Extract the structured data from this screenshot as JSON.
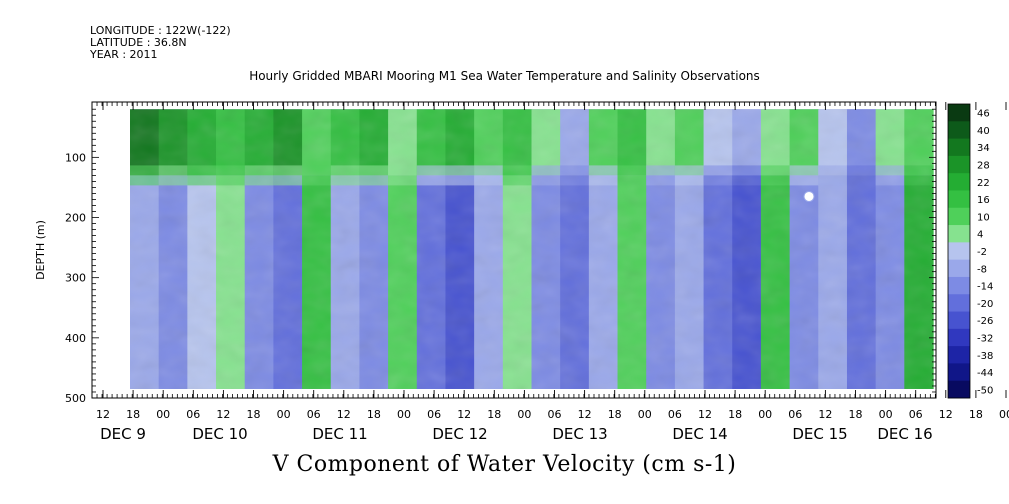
{
  "header": {
    "longitude": "LONGITUDE : 122W(-122)",
    "latitude": "LATITUDE : 36.8N",
    "year": "YEAR : 2011"
  },
  "chart_data": {
    "type": "heatmap",
    "title": "Hourly Gridded MBARI Mooring M1 Sea Water Temperature and Salinity Observations",
    "xlabel": "V Component of Water Velocity (cm s-1)",
    "ylabel": "DEPTH (m)",
    "y_reversed": true,
    "ylim": [
      0,
      500
    ],
    "data_depth_range": [
      20,
      485
    ],
    "y_ticks": [
      100,
      200,
      300,
      400,
      500
    ],
    "x_time_range_hours": [
      "DEC 9 12",
      "DEC 16 09"
    ],
    "data_time_range": [
      "DEC 9 18",
      "DEC 16 09"
    ],
    "x_hour_ticks": [
      "12",
      "18",
      "00",
      "06",
      "12",
      "18",
      "00",
      "06",
      "12",
      "18",
      "00",
      "06",
      "12",
      "18",
      "00",
      "06",
      "12",
      "18",
      "00",
      "06",
      "12",
      "18",
      "00",
      "06",
      "12",
      "18",
      "00",
      "06",
      "12",
      "18",
      "00",
      "06"
    ],
    "x_day_labels": [
      "DEC  9",
      "DEC 10",
      "DEC 11",
      "DEC 12",
      "DEC 13",
      "DEC 14",
      "DEC 15",
      "DEC 16"
    ],
    "colorbar_levels": [
      46,
      40,
      34,
      28,
      22,
      16,
      10,
      4,
      -2,
      -8,
      -14,
      -20,
      -26,
      -32,
      -38,
      -44,
      -50
    ],
    "colorbar_colors": [
      "#0a3a12",
      "#0d5a1a",
      "#13781f",
      "#1b9428",
      "#24ad33",
      "#34c042",
      "#4fd05a",
      "#86e28f",
      "#b6c4ee",
      "#9aa8ea",
      "#7d8be4",
      "#626fdc",
      "#4753d0",
      "#3038bf",
      "#1d24a6",
      "#101688",
      "#080a60"
    ],
    "series": [
      {
        "depth_band": "20-120 m",
        "values_cm_s": [
          34,
          28,
          22,
          16,
          22,
          28,
          10,
          16,
          22,
          4,
          16,
          22,
          10,
          16,
          4,
          -8,
          10,
          16,
          4,
          10,
          -2,
          -8,
          4,
          10,
          -2,
          -14,
          4,
          10
        ]
      },
      {
        "depth_band": "120-485 m",
        "values_cm_s": [
          -8,
          -14,
          -2,
          4,
          -14,
          -20,
          16,
          -8,
          -14,
          10,
          -20,
          -26,
          -8,
          4,
          -14,
          -20,
          -8,
          10,
          -14,
          -8,
          -20,
          -26,
          16,
          -14,
          -8,
          -20,
          -14,
          22
        ]
      }
    ],
    "annotation": "white circle marker near DEC 15 09, 165 m"
  }
}
